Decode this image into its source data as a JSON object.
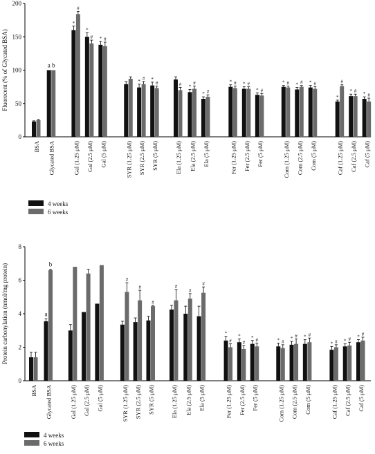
{
  "colors": {
    "week4": "#111111",
    "week6": "#6b6b6b",
    "axis": "#000000"
  },
  "chart_data": [
    {
      "type": "bar",
      "title": "",
      "ylabel": "Fluorecent (% of Glycated BSA)",
      "ylim": [
        0,
        200
      ],
      "yticks": [
        "0",
        "50",
        "100",
        "150",
        "200"
      ],
      "categories": [
        "BSA",
        "Glycated BSA",
        "Gal (1.25 μM)",
        "Gal (2.5 μM)",
        "Gal (5 μM)",
        "SYR (1.25 μM)",
        "SYR (2.5 μM)",
        "SYR (5 μM)",
        "Ela (1.25 μM)",
        "Ela (2.5 μM)",
        "Ela (5 μM)",
        "Fer (1.25 μM)",
        "Fer (2.5 μM)",
        "Fer (5 μM)",
        "Com (1.25 μM)",
        "Com (2.5 μM)",
        "Com (5 μM)",
        "Caf (1.25 μM)",
        "Caf (2.5 μM)",
        "Caf (5 μM)"
      ],
      "series": [
        {
          "name": "4 weeks",
          "values": [
            23,
            100,
            160,
            150,
            138,
            79,
            74,
            77,
            86,
            67,
            57,
            75,
            72,
            63,
            75,
            71,
            74,
            53,
            61,
            57
          ],
          "errors": [
            1,
            0,
            6,
            6,
            5,
            4,
            5,
            5,
            4,
            4,
            3,
            3,
            3,
            3,
            2,
            3,
            3,
            2,
            3,
            3
          ],
          "marks": [
            "",
            "a",
            "*",
            "*",
            "*",
            "",
            "*",
            "*",
            "",
            "*",
            "*",
            "*",
            "*",
            "*",
            "*",
            "*",
            "*",
            "*",
            "*",
            "*"
          ]
        },
        {
          "name": "6 weeks",
          "values": [
            25,
            100,
            184,
            140,
            136,
            87,
            79,
            73,
            70,
            72,
            60,
            73,
            72,
            62,
            74,
            75,
            72,
            76,
            61,
            53
          ],
          "errors": [
            1,
            0,
            4,
            5,
            6,
            3,
            4,
            3,
            4,
            4,
            3,
            3,
            3,
            3,
            2,
            2,
            3,
            2,
            3,
            5
          ],
          "marks": [
            "",
            "b",
            "#",
            "#",
            "#",
            "",
            "#",
            "#",
            "#",
            "#",
            "#",
            "#",
            "#",
            "#",
            "#",
            "#",
            "#",
            "#",
            "#",
            "#"
          ]
        }
      ],
      "legend": "bottom-left"
    },
    {
      "type": "bar",
      "title": "",
      "ylabel": "Protein carbonylation (nmol/mg protein)",
      "ylim": [
        0,
        8
      ],
      "yticks": [
        "0",
        "2",
        "4",
        "6",
        "8"
      ],
      "categories": [
        "BSA",
        "Glycated BSA",
        "Gal (1.25 μM)",
        "Gal (2.5 μM)",
        "Gal (5 μM)",
        "SYR (1.25 μM)",
        "SYR (2.5 μM)",
        "SYR (5 μM)",
        "Ela (1.25 μM)",
        "Ela (2.5 μM)",
        "Ela (5 μM)",
        "Fer (1.25 μM)",
        "Fer (2.5 μM)",
        "Fer (5 μM)",
        "Com (1.25 μM)",
        "Com (2.5 μM)",
        "Com (5 μM)",
        "Caf (1.25 μM)",
        "Caf (2.5 μM)",
        "Caf (5 μM)"
      ],
      "series": [
        {
          "name": "4 weeks",
          "values": [
            1.4,
            3.55,
            3.0,
            4.1,
            4.6,
            3.35,
            3.5,
            3.6,
            4.25,
            4.0,
            3.85,
            2.4,
            2.3,
            2.2,
            2.05,
            2.15,
            2.2,
            1.85,
            2.05,
            2.3
          ],
          "errors": [
            0.3,
            0.15,
            0.35,
            0.0,
            0.0,
            0.2,
            0.25,
            0.25,
            0.25,
            0.45,
            0.6,
            0.25,
            0.2,
            0.2,
            0.2,
            0.2,
            0.25,
            0.2,
            0.15,
            0.15
          ],
          "marks": [
            "",
            "a",
            "",
            "",
            "",
            "",
            "",
            "",
            "",
            "",
            "",
            "*",
            "*",
            "*",
            "*",
            "*",
            "*",
            "*",
            "*",
            "*"
          ]
        },
        {
          "name": "6 weeks",
          "values": [
            1.4,
            6.6,
            6.8,
            6.4,
            6.9,
            5.3,
            4.8,
            4.45,
            4.8,
            4.9,
            5.25,
            2.0,
            1.9,
            2.05,
            1.95,
            2.2,
            2.3,
            2.0,
            2.1,
            2.4
          ],
          "errors": [
            0.3,
            0.05,
            0.0,
            0.25,
            0.0,
            0.55,
            0.6,
            0.05,
            0.65,
            0.3,
            0.35,
            0.2,
            0.2,
            0.2,
            0.2,
            0.3,
            0.25,
            0.15,
            0.2,
            0.2
          ],
          "marks": [
            "",
            "b",
            "",
            "",
            "",
            "#",
            "#",
            "#",
            "#",
            "#",
            "#",
            "#",
            "#",
            "#",
            "#",
            "#",
            "#",
            "#",
            "#",
            "#"
          ]
        }
      ],
      "legend": "bottom-left"
    }
  ]
}
